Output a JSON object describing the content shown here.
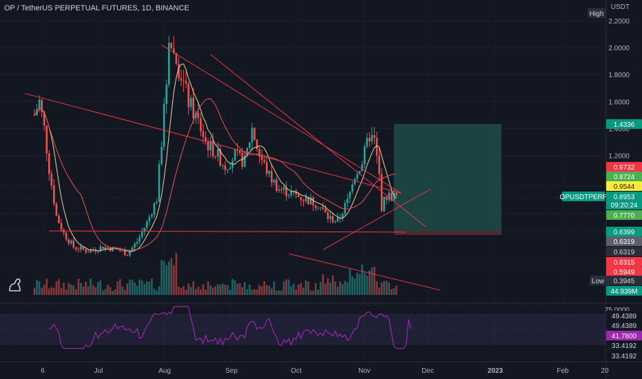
{
  "header": {
    "title": "OP / TetherUS PERPETUAL FUTURES, 1D, BINANCE",
    "currency": "USDT"
  },
  "price_axis": {
    "ticks": [
      "2.2000",
      "2.0000",
      "1.8000",
      "1.6000",
      "1.4000",
      "1.2000"
    ]
  },
  "badges": {
    "high_label": "High",
    "low_label": "Low",
    "symbol_label": "OPUSDTPERP",
    "target": "1.4336",
    "ma1": "0.9732",
    "ma2": "0.9724",
    "ma3": "0.9544",
    "price": "0.8953",
    "countdown": "09:20:24",
    "ma4": "0.7770",
    "lvl1": "0.6399",
    "lvl2": "0.6319",
    "lvl3": "0.6319",
    "lvl4": "0.6315",
    "lvl5": "0.5949",
    "low_value": "0.3945",
    "volume": "44.939M"
  },
  "rsi_axis": {
    "top_tick": "75.0000",
    "v1": "49.4389",
    "v2": "49.4389",
    "v3": "41.7800",
    "v4": "33.4192",
    "v5": "33.4192"
  },
  "time_axis": {
    "labels": [
      "6",
      "Jul",
      "Aug",
      "Sep",
      "Oct",
      "Nov",
      "Dec",
      "2023",
      "Feb",
      "20"
    ]
  },
  "colors": {
    "up": "#26a69a",
    "down": "#ef5350",
    "trendline": "#f23645",
    "ma_fast": "#e8d8a0",
    "ma_slow": "#ef5350",
    "rsi": "#9c27b0",
    "target_zone": "#1d4b47",
    "badge_green": "#089981",
    "badge_red": "#f23645",
    "badge_yellow": "#ffeb3b",
    "badge_lime": "#4caf50"
  },
  "chart_data": {
    "type": "candlestick",
    "symbol": "OP / TetherUS PERPETUAL FUTURES",
    "interval": "1D",
    "exchange": "BINANCE",
    "unit": "USDT",
    "ylim": [
      0.35,
      2.25
    ],
    "ticks": [
      1.2,
      1.4,
      1.6,
      1.8,
      2.0,
      2.2
    ],
    "x_labels": [
      "6",
      "Jul",
      "Aug",
      "Sep",
      "Oct",
      "Nov",
      "Dec",
      "2023",
      "Feb",
      "20"
    ],
    "close_path": [
      {
        "d": 0,
        "v": 1.5
      },
      {
        "d": 2,
        "v": 1.6
      },
      {
        "d": 4,
        "v": 1.4
      },
      {
        "d": 6,
        "v": 1.1
      },
      {
        "d": 9,
        "v": 0.75
      },
      {
        "d": 12,
        "v": 0.62
      },
      {
        "d": 16,
        "v": 0.52
      },
      {
        "d": 22,
        "v": 0.49
      },
      {
        "d": 28,
        "v": 0.52
      },
      {
        "d": 34,
        "v": 0.5
      },
      {
        "d": 38,
        "v": 0.47
      },
      {
        "d": 42,
        "v": 0.56
      },
      {
        "d": 46,
        "v": 0.7
      },
      {
        "d": 50,
        "v": 0.88
      },
      {
        "d": 52,
        "v": 1.3
      },
      {
        "d": 54,
        "v": 1.75
      },
      {
        "d": 55,
        "v": 2.1
      },
      {
        "d": 57,
        "v": 1.95
      },
      {
        "d": 60,
        "v": 1.8
      },
      {
        "d": 63,
        "v": 1.6
      },
      {
        "d": 67,
        "v": 1.45
      },
      {
        "d": 70,
        "v": 1.3
      },
      {
        "d": 74,
        "v": 1.22
      },
      {
        "d": 78,
        "v": 1.12
      },
      {
        "d": 82,
        "v": 1.2
      },
      {
        "d": 86,
        "v": 1.15
      },
      {
        "d": 89,
        "v": 1.4
      },
      {
        "d": 92,
        "v": 1.2
      },
      {
        "d": 96,
        "v": 1.05
      },
      {
        "d": 100,
        "v": 0.95
      },
      {
        "d": 105,
        "v": 0.92
      },
      {
        "d": 110,
        "v": 0.88
      },
      {
        "d": 116,
        "v": 0.84
      },
      {
        "d": 120,
        "v": 0.74
      },
      {
        "d": 124,
        "v": 0.71
      },
      {
        "d": 128,
        "v": 0.86
      },
      {
        "d": 131,
        "v": 1.05
      },
      {
        "d": 134,
        "v": 1.15
      },
      {
        "d": 137,
        "v": 1.35
      },
      {
        "d": 139,
        "v": 1.3
      },
      {
        "d": 141,
        "v": 1.05
      },
      {
        "d": 142,
        "v": 0.82
      },
      {
        "d": 144,
        "v": 0.9
      },
      {
        "d": 148,
        "v": 0.8953
      }
    ],
    "moving_averages": [
      {
        "color": "#e8d8a0",
        "last": 0.9544
      },
      {
        "color": "#ef5350",
        "last": 0.9732
      }
    ],
    "trendlines": [
      {
        "from": {
          "d": -4,
          "v": 1.66
        },
        "to": {
          "d": 150,
          "v": 0.92
        }
      },
      {
        "from": {
          "d": 52,
          "v": 2.02
        },
        "to": {
          "d": 150,
          "v": 0.92
        }
      },
      {
        "from": {
          "d": 72,
          "v": 1.95
        },
        "to": {
          "d": 160,
          "v": 0.67
        }
      },
      {
        "from": {
          "d": 118,
          "v": 0.5
        },
        "to": {
          "d": 162,
          "v": 0.95
        }
      },
      {
        "from": {
          "d": 104,
          "v": 0.47
        },
        "to": {
          "d": 166,
          "v": 0.2
        }
      },
      {
        "from": {
          "d": 6,
          "v": 0.64
        },
        "to": {
          "d": 152,
          "v": 0.63
        }
      }
    ],
    "position": {
      "target": 1.4336,
      "entry": 0.6399,
      "stop": 0.6319,
      "from_day": 147,
      "to_day": 191
    },
    "levels": {
      "high_marker": 2.22,
      "low": 0.3945,
      "last": 0.8953
    },
    "rsi": {
      "top": 75.0,
      "values": [
        49.4389,
        41.78,
        33.4192
      ]
    },
    "volume_last": "44.939M"
  }
}
